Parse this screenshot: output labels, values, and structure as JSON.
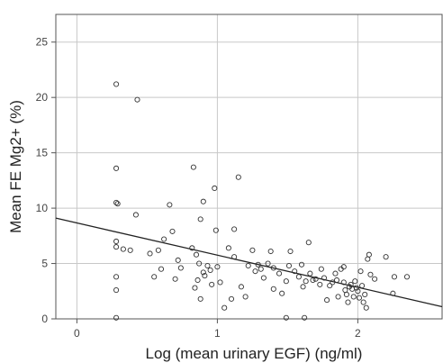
{
  "chart_data": {
    "type": "scatter",
    "xlabel": "Log (mean urinary EGF) (ng/ml)",
    "ylabel": "Mean FE Mg2+ (%)",
    "xlim": [
      -0.15,
      2.6
    ],
    "ylim": [
      0,
      27.5
    ],
    "x_ticks": [
      "0",
      "1",
      "2"
    ],
    "y_ticks": [
      "0",
      "5",
      "10",
      "15",
      "20",
      "25"
    ],
    "grid": true,
    "fit_line": {
      "x": [
        -0.15,
        2.6
      ],
      "y": [
        9.1,
        1.1
      ]
    },
    "colors": {
      "marker": "#333333",
      "grid": "#c8c8c8",
      "frame": "#555555",
      "fit": "#222222"
    },
    "points": [
      [
        0.28,
        21.2
      ],
      [
        0.43,
        19.8
      ],
      [
        0.28,
        13.6
      ],
      [
        0.28,
        10.5
      ],
      [
        0.29,
        10.4
      ],
      [
        0.42,
        9.4
      ],
      [
        0.28,
        7.0
      ],
      [
        0.28,
        6.5
      ],
      [
        0.33,
        6.3
      ],
      [
        0.38,
        6.2
      ],
      [
        0.28,
        3.8
      ],
      [
        0.28,
        2.6
      ],
      [
        0.28,
        0.1
      ],
      [
        0.52,
        5.9
      ],
      [
        0.58,
        6.2
      ],
      [
        0.62,
        7.2
      ],
      [
        0.6,
        4.5
      ],
      [
        0.55,
        3.8
      ],
      [
        0.66,
        10.3
      ],
      [
        0.68,
        7.9
      ],
      [
        0.72,
        5.3
      ],
      [
        0.74,
        4.6
      ],
      [
        0.7,
        3.6
      ],
      [
        0.83,
        13.7
      ],
      [
        0.9,
        10.6
      ],
      [
        0.88,
        9.0
      ],
      [
        0.82,
        6.4
      ],
      [
        0.85,
        5.8
      ],
      [
        0.87,
        5.0
      ],
      [
        0.9,
        4.2
      ],
      [
        0.86,
        3.5
      ],
      [
        0.91,
        3.9
      ],
      [
        0.84,
        2.8
      ],
      [
        0.88,
        1.8
      ],
      [
        0.95,
        4.4
      ],
      [
        0.93,
        4.8
      ],
      [
        0.96,
        3.1
      ],
      [
        0.98,
        11.8
      ],
      [
        0.99,
        8.0
      ],
      [
        1.0,
        4.7
      ],
      [
        1.02,
        3.3
      ],
      [
        1.05,
        1.0
      ],
      [
        1.08,
        6.4
      ],
      [
        1.12,
        8.1
      ],
      [
        1.15,
        12.8
      ],
      [
        1.12,
        5.6
      ],
      [
        1.1,
        1.8
      ],
      [
        1.17,
        2.9
      ],
      [
        1.2,
        2.0
      ],
      [
        1.22,
        4.8
      ],
      [
        1.25,
        6.2
      ],
      [
        1.27,
        4.3
      ],
      [
        1.29,
        4.9
      ],
      [
        1.31,
        4.5
      ],
      [
        1.33,
        3.7
      ],
      [
        1.36,
        5.0
      ],
      [
        1.38,
        6.1
      ],
      [
        1.4,
        4.6
      ],
      [
        1.4,
        2.7
      ],
      [
        1.44,
        4.1
      ],
      [
        1.46,
        2.3
      ],
      [
        1.49,
        3.4
      ],
      [
        1.51,
        4.8
      ],
      [
        1.52,
        6.1
      ],
      [
        1.55,
        4.3
      ],
      [
        1.58,
        3.8
      ],
      [
        1.6,
        4.9
      ],
      [
        1.61,
        2.9
      ],
      [
        1.63,
        3.4
      ],
      [
        1.65,
        6.9
      ],
      [
        1.66,
        4.1
      ],
      [
        1.68,
        3.5
      ],
      [
        1.7,
        3.6
      ],
      [
        1.73,
        3.1
      ],
      [
        1.74,
        4.5
      ],
      [
        1.76,
        3.7
      ],
      [
        1.78,
        1.7
      ],
      [
        1.8,
        3.0
      ],
      [
        1.82,
        3.3
      ],
      [
        1.84,
        4.1
      ],
      [
        1.85,
        3.5
      ],
      [
        1.86,
        2.0
      ],
      [
        1.88,
        4.5
      ],
      [
        1.9,
        3.3
      ],
      [
        1.91,
        2.6
      ],
      [
        1.92,
        2.2
      ],
      [
        1.93,
        1.5
      ],
      [
        1.94,
        2.9
      ],
      [
        1.95,
        3.1
      ],
      [
        1.96,
        2.7
      ],
      [
        1.97,
        2.0
      ],
      [
        1.98,
        3.4
      ],
      [
        1.99,
        2.8
      ],
      [
        2.0,
        2.5
      ],
      [
        2.01,
        1.9
      ],
      [
        2.02,
        4.3
      ],
      [
        2.03,
        3.0
      ],
      [
        2.04,
        1.5
      ],
      [
        2.05,
        2.2
      ],
      [
        2.06,
        1.0
      ],
      [
        2.07,
        5.4
      ],
      [
        2.08,
        5.8
      ],
      [
        2.09,
        4.0
      ],
      [
        2.12,
        3.6
      ],
      [
        2.2,
        5.6
      ],
      [
        2.25,
        2.3
      ],
      [
        2.26,
        3.8
      ],
      [
        2.35,
        3.8
      ],
      [
        1.62,
        0.1
      ],
      [
        1.49,
        0.1
      ],
      [
        1.9,
        4.7
      ]
    ]
  }
}
